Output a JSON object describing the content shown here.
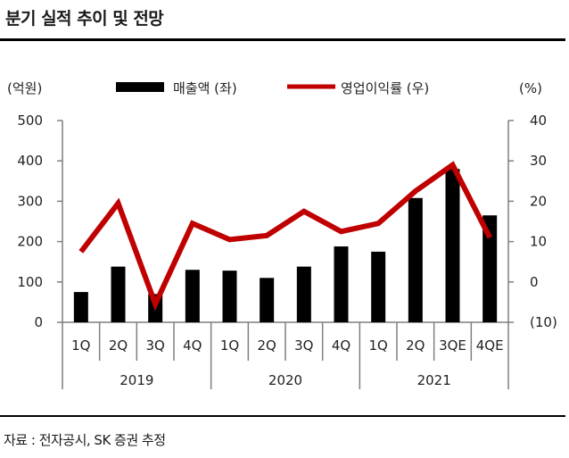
{
  "title": "분기 실적 추이 및 전망",
  "source": "자료 : 전자공시, SK 증권 추정",
  "chart_data": {
    "type": "bar+line",
    "left_unit": "(억원)",
    "right_unit": "(%)",
    "legend": [
      {
        "label": "매출액 (좌)",
        "color": "#000000",
        "kind": "bar"
      },
      {
        "label": "영업이익률 (우)",
        "color": "#c00000",
        "kind": "line"
      }
    ],
    "categories": [
      "1Q",
      "2Q",
      "3Q",
      "4Q",
      "1Q",
      "2Q",
      "3Q",
      "4Q",
      "1Q",
      "2Q",
      "3QE",
      "4QE"
    ],
    "years": [
      {
        "label": "2019",
        "start": 0,
        "end": 3
      },
      {
        "label": "2020",
        "start": 4,
        "end": 7
      },
      {
        "label": "2021",
        "start": 8,
        "end": 11
      }
    ],
    "series": [
      {
        "name": "매출액 (좌)",
        "axis": "left",
        "values": [
          75,
          138,
          70,
          130,
          128,
          110,
          138,
          188,
          175,
          308,
          380,
          265
        ]
      },
      {
        "name": "영업이익률 (우)",
        "axis": "right",
        "values": [
          7.5,
          19.5,
          -5.5,
          14.5,
          10.5,
          11.5,
          17.5,
          12.5,
          14.5,
          22.5,
          29,
          11
        ]
      }
    ],
    "left_axis": {
      "min": 0,
      "max": 500,
      "ticks": [
        "0",
        "100",
        "200",
        "300",
        "400",
        "500"
      ]
    },
    "right_axis": {
      "min": -10,
      "max": 40,
      "ticks": [
        "(10)",
        "0",
        "10",
        "20",
        "30",
        "40"
      ]
    },
    "grid": false
  }
}
